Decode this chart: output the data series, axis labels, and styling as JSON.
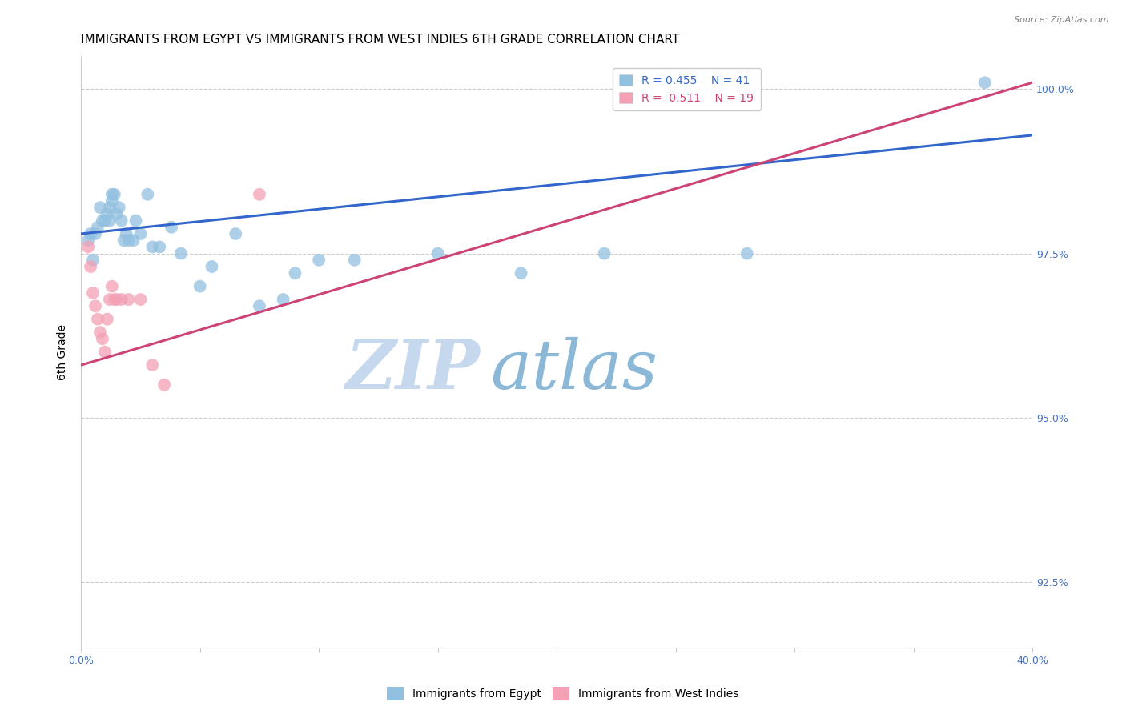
{
  "title": "IMMIGRANTS FROM EGYPT VS IMMIGRANTS FROM WEST INDIES 6TH GRADE CORRELATION CHART",
  "source": "Source: ZipAtlas.com",
  "ylabel": "6th Grade",
  "ylabel_right_ticks": [
    "100.0%",
    "97.5%",
    "95.0%",
    "92.5%"
  ],
  "ylabel_right_values": [
    1.0,
    0.975,
    0.95,
    0.925
  ],
  "xmin": 0.0,
  "xmax": 0.4,
  "ymin": 0.915,
  "ymax": 1.005,
  "legend_blue_r": "R = 0.455",
  "legend_blue_n": "N = 41",
  "legend_pink_r": "R =  0.511",
  "legend_pink_n": "N = 19",
  "blue_scatter_x": [
    0.003,
    0.004,
    0.005,
    0.006,
    0.007,
    0.008,
    0.009,
    0.01,
    0.011,
    0.012,
    0.012,
    0.013,
    0.013,
    0.014,
    0.015,
    0.016,
    0.017,
    0.018,
    0.019,
    0.02,
    0.022,
    0.023,
    0.025,
    0.028,
    0.03,
    0.033,
    0.038,
    0.042,
    0.05,
    0.055,
    0.065,
    0.075,
    0.085,
    0.09,
    0.1,
    0.115,
    0.15,
    0.185,
    0.22,
    0.28,
    0.38
  ],
  "blue_scatter_y": [
    0.977,
    0.978,
    0.974,
    0.978,
    0.979,
    0.982,
    0.98,
    0.98,
    0.981,
    0.982,
    0.98,
    0.983,
    0.984,
    0.984,
    0.981,
    0.982,
    0.98,
    0.977,
    0.978,
    0.977,
    0.977,
    0.98,
    0.978,
    0.984,
    0.976,
    0.976,
    0.979,
    0.975,
    0.97,
    0.973,
    0.978,
    0.967,
    0.968,
    0.972,
    0.974,
    0.974,
    0.975,
    0.972,
    0.975,
    0.975,
    1.001
  ],
  "pink_scatter_x": [
    0.003,
    0.004,
    0.005,
    0.006,
    0.007,
    0.008,
    0.009,
    0.01,
    0.011,
    0.012,
    0.013,
    0.014,
    0.015,
    0.017,
    0.02,
    0.025,
    0.03,
    0.035,
    0.075
  ],
  "pink_scatter_y": [
    0.976,
    0.973,
    0.969,
    0.967,
    0.965,
    0.963,
    0.962,
    0.96,
    0.965,
    0.968,
    0.97,
    0.968,
    0.968,
    0.968,
    0.968,
    0.968,
    0.958,
    0.955,
    0.984
  ],
  "blue_line_x": [
    0.0,
    0.4
  ],
  "blue_line_y": [
    0.978,
    0.993
  ],
  "pink_line_x": [
    0.0,
    0.4
  ],
  "pink_line_y": [
    0.958,
    1.001
  ],
  "blue_color": "#92c0e0",
  "pink_color": "#f4a0b5",
  "blue_line_color": "#3366cc",
  "pink_line_color": "#cc4477",
  "grid_color": "#cccccc",
  "watermark_zip_color": "#c5d8ee",
  "watermark_atlas_color": "#8cb8d8",
  "title_fontsize": 11,
  "axis_label_fontsize": 10,
  "tick_fontsize": 9,
  "legend_fontsize": 10,
  "right_tick_color": "#4472c4",
  "bottom_tick_color": "#4472c4"
}
